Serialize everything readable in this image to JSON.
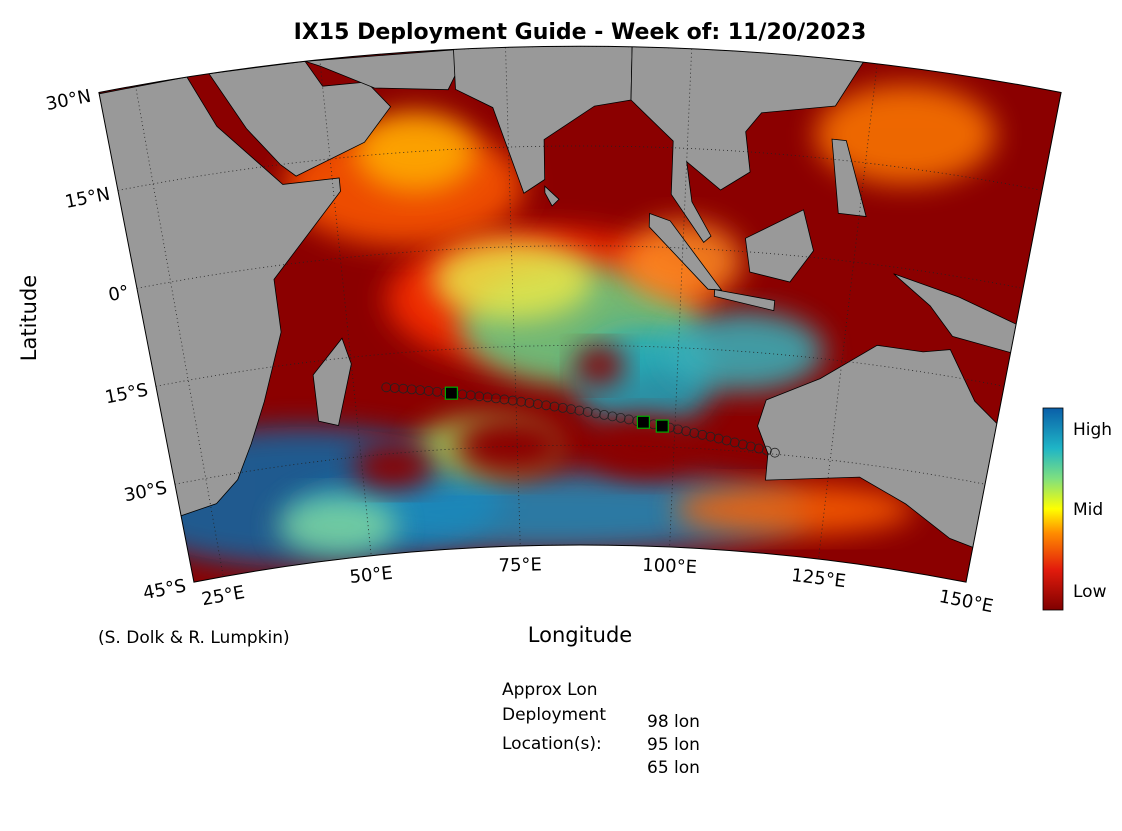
{
  "title": "IX15 Deployment Guide - Week of: 11/20/2023",
  "x_label": "Longitude",
  "y_label": "Latitude",
  "lat_ticks": [
    {
      "value": 30,
      "label": "30°N"
    },
    {
      "value": 15,
      "label": "15°N"
    },
    {
      "value": 0,
      "label": "0°"
    },
    {
      "value": -15,
      "label": "15°S"
    },
    {
      "value": -30,
      "label": "30°S"
    },
    {
      "value": -45,
      "label": "45°S"
    }
  ],
  "lon_ticks": [
    {
      "value": 25,
      "label": "25°E"
    },
    {
      "value": 50,
      "label": "50°E"
    },
    {
      "value": 75,
      "label": "75°E"
    },
    {
      "value": 100,
      "label": "100°E"
    },
    {
      "value": 125,
      "label": "125°E"
    },
    {
      "value": 150,
      "label": "150°E"
    }
  ],
  "colorbar_labels": [
    "High",
    "Mid",
    "Low"
  ],
  "credit": "(S. Dolk & R. Lumpkin)",
  "deployment": {
    "heading": [
      "Approx Lon",
      "Deployment",
      "Location(s):"
    ],
    "locations": [
      {
        "value": 98,
        "label": "98 lon"
      },
      {
        "value": 95,
        "label": "95 lon"
      },
      {
        "value": 65,
        "label": "65 lon"
      }
    ]
  }
}
